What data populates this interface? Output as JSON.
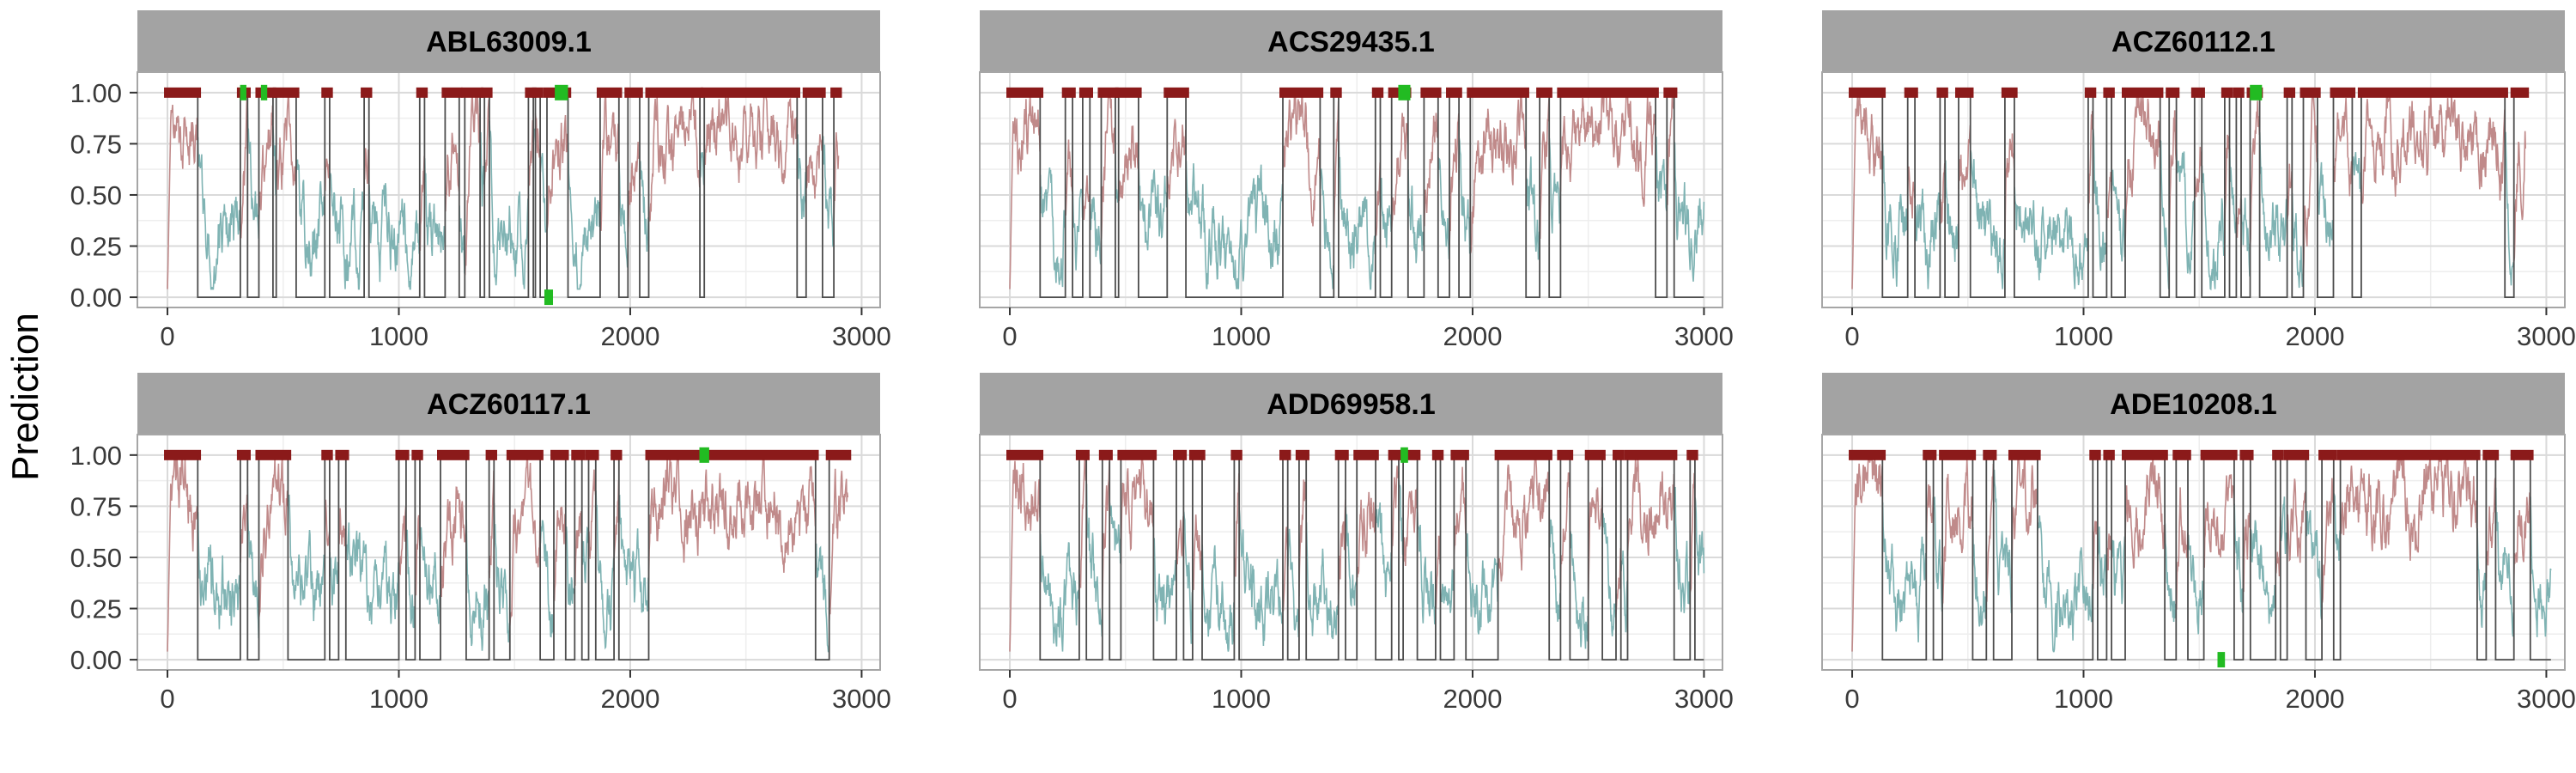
{
  "chart_data": {
    "type": "line",
    "layout": "facet-grid",
    "ylabel": "Prediction",
    "xlabel": "",
    "xlim": [
      -130,
      3080
    ],
    "ylim": [
      -0.05,
      1.1
    ],
    "xticks": [
      0,
      1000,
      2000,
      3000
    ],
    "xtick_labels": [
      "0",
      "1000",
      "2000",
      "3000"
    ],
    "yticks": [
      0,
      0.25,
      0.5,
      0.75,
      1
    ],
    "ytick_labels": [
      "0.00",
      "0.25",
      "0.50",
      "0.75",
      "1.00"
    ],
    "colors": {
      "strip_bg": "#a3a3a3",
      "panel_border": "#a6a6a6",
      "grid_major": "#dadada",
      "grid_minor": "#eeeeee",
      "positive": "#8b1a1a",
      "positive_line": "#c08a8a",
      "negative_line": "#7fb3b3",
      "binary_line": "#4d4d4d",
      "epitope": "#22bb22"
    },
    "panels": [
      {
        "title": "ABL63009.1",
        "length": 2900,
        "positive_regions": [
          [
            0,
            130
          ],
          [
            315,
            345
          ],
          [
            395,
            455
          ],
          [
            470,
            555
          ],
          [
            680,
            700
          ],
          [
            850,
            870
          ],
          [
            1090,
            1110
          ],
          [
            1200,
            1260
          ],
          [
            1285,
            1350
          ],
          [
            1370,
            1390
          ],
          [
            1560,
            1580
          ],
          [
            1590,
            1610
          ],
          [
            1640,
            1730
          ],
          [
            1870,
            1950
          ],
          [
            1990,
            2040
          ],
          [
            2080,
            2300
          ],
          [
            2320,
            2720
          ],
          [
            2760,
            2830
          ],
          [
            2880,
            2900
          ]
        ],
        "epitopes": [
          [
            325,
            330,
            1
          ],
          [
            415,
            420,
            1
          ],
          [
            1640,
            1655,
            0
          ],
          [
            1685,
            1720,
            1
          ]
        ]
      },
      {
        "title": "ACS29435.1",
        "length": 3000,
        "positive_regions": [
          [
            0,
            130
          ],
          [
            240,
            270
          ],
          [
            315,
            345
          ],
          [
            395,
            455
          ],
          [
            470,
            555
          ],
          [
            680,
            760
          ],
          [
            1180,
            1340
          ],
          [
            1400,
            1420
          ],
          [
            1580,
            1600
          ],
          [
            1650,
            1720
          ],
          [
            1790,
            1850
          ],
          [
            1900,
            1940
          ],
          [
            1990,
            2230
          ],
          [
            2290,
            2330
          ],
          [
            2380,
            2790
          ],
          [
            2840,
            2870
          ]
        ],
        "epitopes": [
          [
            1690,
            1720,
            1
          ]
        ]
      },
      {
        "title": "ACZ60112.1",
        "length": 2910,
        "positive_regions": [
          [
            0,
            130
          ],
          [
            240,
            270
          ],
          [
            380,
            400
          ],
          [
            460,
            510
          ],
          [
            660,
            700
          ],
          [
            1020,
            1040
          ],
          [
            1100,
            1120
          ],
          [
            1180,
            1330
          ],
          [
            1370,
            1400
          ],
          [
            1480,
            1510
          ],
          [
            1610,
            1630
          ],
          [
            1660,
            1680
          ],
          [
            1720,
            1760
          ],
          [
            1880,
            1900
          ],
          [
            1950,
            2010
          ],
          [
            2080,
            2160
          ],
          [
            2200,
            2820
          ],
          [
            2860,
            2910
          ]
        ],
        "epitopes": [
          [
            1730,
            1760,
            1
          ]
        ]
      },
      {
        "title": "ACZ60117.1",
        "length": 2940,
        "positive_regions": [
          [
            0,
            130
          ],
          [
            315,
            345
          ],
          [
            395,
            520
          ],
          [
            680,
            700
          ],
          [
            740,
            770
          ],
          [
            1000,
            1030
          ],
          [
            1070,
            1090
          ],
          [
            1180,
            1290
          ],
          [
            1390,
            1410
          ],
          [
            1480,
            1610
          ],
          [
            1670,
            1720
          ],
          [
            1760,
            1790
          ],
          [
            1820,
            1850
          ],
          [
            1930,
            1950
          ],
          [
            2080,
            2800
          ],
          [
            2860,
            2940
          ]
        ],
        "epitopes": [
          [
            2310,
            2330,
            1
          ]
        ]
      },
      {
        "title": "ADD69958.1",
        "length": 3000,
        "positive_regions": [
          [
            0,
            130
          ],
          [
            300,
            330
          ],
          [
            400,
            430
          ],
          [
            480,
            620
          ],
          [
            720,
            750
          ],
          [
            790,
            830
          ],
          [
            970,
            990
          ],
          [
            1180,
            1200
          ],
          [
            1250,
            1280
          ],
          [
            1420,
            1450
          ],
          [
            1500,
            1580
          ],
          [
            1650,
            1680
          ],
          [
            1700,
            1760
          ],
          [
            1840,
            1860
          ],
          [
            1920,
            1970
          ],
          [
            2110,
            2330
          ],
          [
            2380,
            2420
          ],
          [
            2500,
            2560
          ],
          [
            2620,
            2640
          ],
          [
            2670,
            2870
          ],
          [
            2940,
            2960
          ]
        ],
        "epitopes": [
          [
            1700,
            1710,
            1
          ]
        ]
      },
      {
        "title": "ADE10208.1",
        "length": 3020,
        "positive_regions": [
          [
            0,
            130
          ],
          [
            320,
            350
          ],
          [
            390,
            520
          ],
          [
            580,
            610
          ],
          [
            690,
            800
          ],
          [
            1040,
            1060
          ],
          [
            1100,
            1120
          ],
          [
            1180,
            1350
          ],
          [
            1400,
            1450
          ],
          [
            1520,
            1650
          ],
          [
            1690,
            1720
          ],
          [
            1830,
            1850
          ],
          [
            1880,
            1960
          ],
          [
            2030,
            2080
          ],
          [
            2110,
            2700
          ],
          [
            2740,
            2780
          ],
          [
            2860,
            2930
          ]
        ],
        "epitopes": [
          [
            1590,
            1600,
            0
          ]
        ]
      }
    ]
  }
}
